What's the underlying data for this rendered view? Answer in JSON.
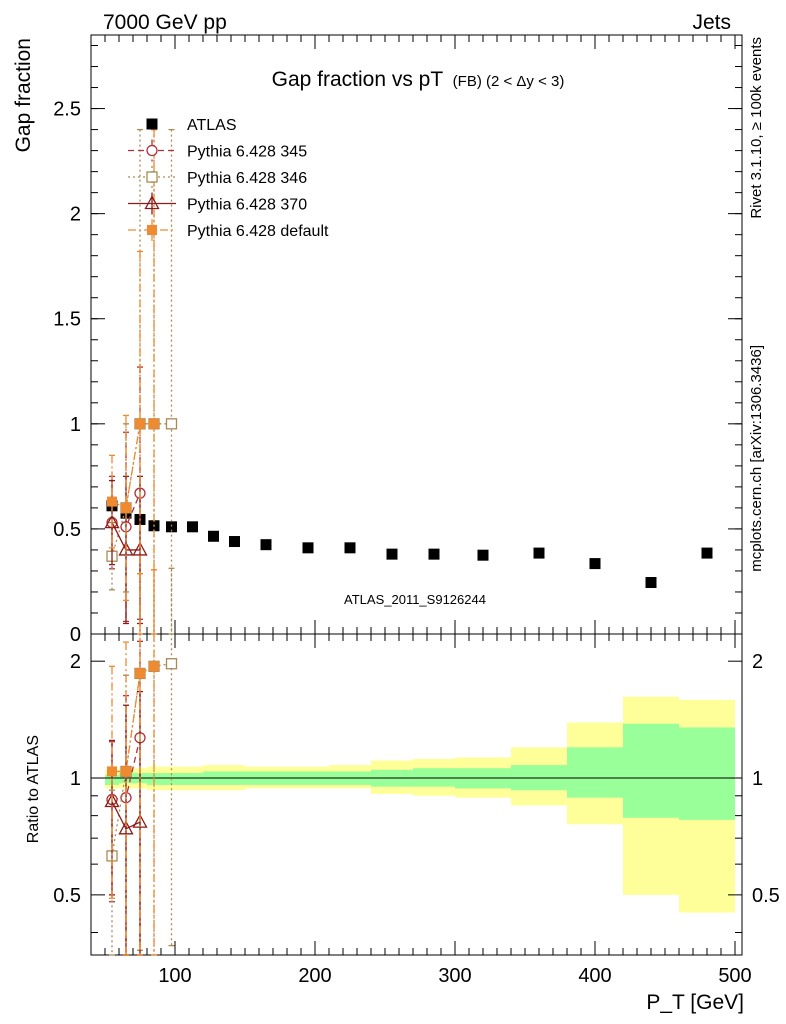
{
  "header": {
    "energy_label": "7000 GeV pp",
    "process_label": "Jets",
    "plot_title": "Gap fraction vs pT",
    "plot_subtitle": "(FB) (2 < Δy < 3)",
    "analysis_id": "ATLAS_2011_S9126244",
    "rivet_label": "Rivet 3.1.10, ≥ 100k events",
    "site_label": "mcplots.cern.ch [arXiv:1306.3436]"
  },
  "colors": {
    "atlas": "#000000",
    "p345": "#b0303a",
    "p346": "#a88a55",
    "p370": "#8b1a1a",
    "pdefault": "#f08a30",
    "band_inner": "#99ff99",
    "band_outer": "#ffff99"
  },
  "chart_data": [
    {
      "type": "scatter",
      "panel": "main",
      "ylabel": "Gap fraction",
      "xlim": [
        40,
        505
      ],
      "ylim": [
        0,
        2.85
      ],
      "yticks": [
        0,
        0.5,
        1,
        1.5,
        2,
        2.5
      ],
      "ytick_labels": [
        "0",
        "0.5",
        "1",
        "1.5",
        "2",
        "2.5"
      ],
      "legend": [
        "ATLAS",
        "Pythia 6.428 345",
        "Pythia 6.428 346",
        "Pythia 6.428 370",
        "Pythia 6.428 default"
      ],
      "series": [
        {
          "name": "ATLAS",
          "key": "atlas",
          "marker": "square-filled",
          "line": "none",
          "x": [
            55,
            65,
            75,
            85,
            97.5,
            112.5,
            127.5,
            142.5,
            165,
            195,
            225,
            255,
            285,
            320,
            360,
            400,
            440,
            480
          ],
          "y": [
            0.61,
            0.575,
            0.545,
            0.515,
            0.51,
            0.51,
            0.465,
            0.44,
            0.425,
            0.41,
            0.41,
            0.38,
            0.38,
            0.375,
            0.385,
            0.335,
            0.245,
            0.385
          ]
        },
        {
          "name": "Pythia 6.428 345",
          "key": "p345",
          "marker": "circle-open",
          "line": "dashed",
          "x": [
            55,
            65,
            75
          ],
          "y": [
            0.53,
            0.51,
            0.67
          ],
          "yerr_low": [
            0.22,
            0.45,
            0.6
          ],
          "yerr_high": [
            0.22,
            0.45,
            0.6
          ]
        },
        {
          "name": "Pythia 6.428 346",
          "key": "p346",
          "marker": "square-open",
          "line": "dotted",
          "x": [
            55,
            65,
            75,
            85,
            97.5
          ],
          "y": [
            0.37,
            0.6,
            1.0,
            1.0,
            1.0
          ],
          "yerr_low": [
            0.16,
            0.4,
            1.0,
            1.0,
            1.0
          ],
          "yerr_high": [
            0.16,
            0.4,
            1.4,
            1.4,
            1.4
          ]
        },
        {
          "name": "Pythia 6.428 370",
          "key": "p370",
          "marker": "triangle-open",
          "line": "solid",
          "x": [
            55,
            65,
            75
          ],
          "y": [
            0.53,
            0.4,
            0.4
          ],
          "yerr_low": [
            0.2,
            0.35,
            0.35
          ],
          "yerr_high": [
            0.2,
            0.35,
            0.35
          ]
        },
        {
          "name": "Pythia 6.428 default",
          "key": "pdefault",
          "marker": "square-filled-small",
          "line": "dashdot",
          "x": [
            55,
            65,
            75,
            85
          ],
          "y": [
            0.63,
            0.6,
            1.0,
            1.0
          ],
          "yerr_low": [
            0.22,
            0.44,
            1.0,
            1.0
          ],
          "yerr_high": [
            0.22,
            0.44,
            0.82,
            1.4
          ]
        }
      ]
    },
    {
      "type": "scatter",
      "panel": "ratio",
      "ylabel": "Ratio to ATLAS",
      "xlabel": "P_T [GeV]",
      "xlim": [
        40,
        505
      ],
      "ylim": [
        0.35,
        2.35
      ],
      "ylog": true,
      "yticks": [
        0.5,
        1,
        2
      ],
      "ytick_labels": [
        "0.5",
        "1",
        "2"
      ],
      "xticks": [
        100,
        200,
        300,
        400,
        500
      ],
      "xtick_labels": [
        "100",
        "200",
        "300",
        "400",
        "500"
      ],
      "bands": {
        "edges": [
          50,
          60,
          70,
          80,
          90,
          105,
          120,
          135,
          150,
          180,
          210,
          240,
          270,
          300,
          340,
          380,
          420,
          460,
          500
        ],
        "outer_low": [
          0.94,
          0.94,
          0.94,
          0.93,
          0.93,
          0.93,
          0.93,
          0.93,
          0.94,
          0.94,
          0.94,
          0.91,
          0.9,
          0.89,
          0.85,
          0.76,
          0.5,
          0.45
        ],
        "outer_high": [
          1.05,
          1.06,
          1.06,
          1.07,
          1.07,
          1.07,
          1.08,
          1.08,
          1.07,
          1.07,
          1.08,
          1.11,
          1.12,
          1.13,
          1.2,
          1.39,
          1.62,
          1.59
        ],
        "inner_low": [
          0.96,
          0.97,
          0.97,
          0.96,
          0.96,
          0.96,
          0.96,
          0.96,
          0.96,
          0.96,
          0.96,
          0.95,
          0.95,
          0.94,
          0.93,
          0.89,
          0.79,
          0.78
        ],
        "inner_high": [
          1.02,
          1.03,
          1.03,
          1.03,
          1.03,
          1.03,
          1.04,
          1.04,
          1.04,
          1.04,
          1.04,
          1.05,
          1.06,
          1.06,
          1.08,
          1.2,
          1.38,
          1.35
        ]
      },
      "series": [
        {
          "name": "Pythia 6.428 345",
          "key": "p345",
          "marker": "circle-open",
          "line": "dashed",
          "x": [
            55,
            65,
            75
          ],
          "y": [
            0.88,
            0.89,
            1.27
          ],
          "yerr_low": [
            0.4,
            0.54,
            0.92
          ],
          "yerr_high": [
            0.36,
            0.74,
            0.98
          ]
        },
        {
          "name": "Pythia 6.428 346",
          "key": "p346",
          "marker": "square-open",
          "line": "dotted",
          "x": [
            55,
            65,
            75,
            85,
            97.5
          ],
          "y": [
            0.63,
            1.04,
            1.86,
            1.94,
            1.97
          ],
          "yerr_low": [
            0.3,
            0.7,
            1.5,
            1.6,
            1.6
          ],
          "yerr_high": [
            0.3,
            0.8,
            1.5,
            1.5,
            1.5
          ]
        },
        {
          "name": "Pythia 6.428 370",
          "key": "p370",
          "marker": "triangle-open",
          "line": "solid",
          "x": [
            55,
            65,
            75
          ],
          "y": [
            0.87,
            0.74,
            0.77
          ],
          "yerr_low": [
            0.37,
            0.65,
            0.7
          ],
          "yerr_high": [
            0.38,
            0.8,
            0.9
          ]
        },
        {
          "name": "Pythia 6.428 default",
          "key": "pdefault",
          "marker": "square-filled-small",
          "line": "dashdot",
          "x": [
            55,
            65,
            75,
            85
          ],
          "y": [
            1.04,
            1.04,
            1.86,
            1.94
          ],
          "yerr_low": [
            0.55,
            0.75,
            1.6,
            1.6
          ],
          "yerr_high": [
            0.9,
            1.2,
            1.5,
            1.5
          ]
        }
      ]
    }
  ]
}
